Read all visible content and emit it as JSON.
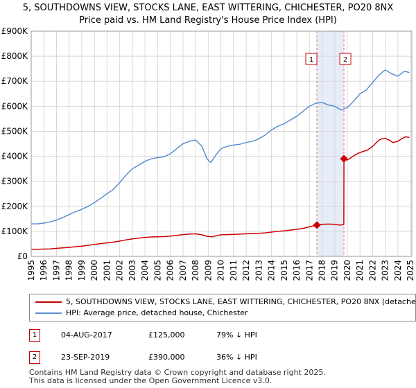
{
  "title_line1": "5, SOUTHDOWNS VIEW, STOCKS LANE, EAST WITTERING, CHICHESTER, PO20 8NX",
  "title_line2": "Price paid vs. HM Land Registry's House Price Index (HPI)",
  "chart_data": {
    "type": "line",
    "title": "5, SOUTHDOWNS VIEW, STOCKS LANE, EAST WITTERING, CHICHESTER, PO20 8NX - Price paid vs. HM Land Registry's House Price Index (HPI)",
    "xlabel": "",
    "ylabel": "",
    "xlim": [
      1995.0,
      2025.1
    ],
    "ylim": [
      0,
      900000
    ],
    "grid": true,
    "y_ticks": [
      0,
      100000,
      200000,
      300000,
      400000,
      500000,
      600000,
      700000,
      800000,
      900000
    ],
    "y_tick_labels": [
      "£0",
      "£100K",
      "£200K",
      "£300K",
      "£400K",
      "£500K",
      "£600K",
      "£700K",
      "£800K",
      "£900K"
    ],
    "x_tick_labels": [
      "1995",
      "1996",
      "1997",
      "1998",
      "1999",
      "2000",
      "2001",
      "2002",
      "2003",
      "2004",
      "2005",
      "2006",
      "2007",
      "2008",
      "2009",
      "2010",
      "2011",
      "2012",
      "2013",
      "2014",
      "2015",
      "2016",
      "2017",
      "2018",
      "2019",
      "2020",
      "2021",
      "2022",
      "2023",
      "2024",
      "2025"
    ],
    "highlight_band": [
      2017.59,
      2019.73
    ],
    "series": [
      {
        "name": "5, SOUTHDOWNS VIEW, STOCKS LANE, EAST WITTERING, CHICHESTER, PO20 8NX (detached house)",
        "color": "#cc0000",
        "x": [
          1995.0,
          1995.5,
          1996.0,
          1996.5,
          1997.0,
          1997.5,
          1998.0,
          1998.5,
          1999.0,
          1999.5,
          2000.0,
          2000.5,
          2001.0,
          2001.5,
          2002.0,
          2002.5,
          2003.0,
          2003.5,
          2004.0,
          2004.5,
          2005.0,
          2005.5,
          2006.0,
          2006.5,
          2007.0,
          2007.5,
          2008.0,
          2008.5,
          2008.9,
          2009.3,
          2009.6,
          2010.0,
          2010.5,
          2011.0,
          2011.5,
          2012.0,
          2012.5,
          2013.0,
          2013.5,
          2014.0,
          2014.5,
          2015.0,
          2015.5,
          2016.0,
          2016.5,
          2017.0,
          2017.59,
          2018.0,
          2018.5,
          2019.0,
          2019.4,
          2019.72,
          2019.73,
          2020.0,
          2020.3,
          2020.6,
          2021.0,
          2021.3,
          2021.6,
          2022.0,
          2022.3,
          2022.6,
          2023.0,
          2023.3,
          2023.6,
          2024.0,
          2024.3,
          2024.6,
          2024.9
        ],
        "y": [
          28500,
          28500,
          29000,
          30000,
          32000,
          34000,
          36000,
          38500,
          41000,
          44000,
          48000,
          51000,
          54000,
          57000,
          61000,
          66000,
          70000,
          73000,
          76000,
          77500,
          78000,
          79000,
          81000,
          84000,
          87000,
          89000,
          90000,
          86000,
          80000,
          78000,
          82000,
          86000,
          87000,
          88000,
          89000,
          90000,
          91000,
          92000,
          94000,
          97000,
          100000,
          102000,
          105000,
          108000,
          112000,
          118000,
          125000,
          128000,
          129000,
          128000,
          125000,
          127000,
          390000,
          385000,
          395000,
          405000,
          415000,
          420000,
          425000,
          440000,
          455000,
          468000,
          472000,
          465000,
          455000,
          460000,
          470000,
          478000,
          475000
        ]
      },
      {
        "name": "HPI: Average price, detached house, Chichester",
        "color": "#5b8fd0",
        "x": [
          1995.0,
          1995.5,
          1996.0,
          1996.5,
          1997.0,
          1997.5,
          1998.0,
          1998.5,
          1999.0,
          1999.5,
          2000.0,
          2000.5,
          2001.0,
          2001.5,
          2002.0,
          2002.5,
          2003.0,
          2003.5,
          2004.0,
          2004.5,
          2005.0,
          2005.5,
          2006.0,
          2006.5,
          2007.0,
          2007.5,
          2008.0,
          2008.5,
          2008.9,
          2009.2,
          2009.6,
          2010.0,
          2010.5,
          2011.0,
          2011.5,
          2012.0,
          2012.5,
          2013.0,
          2013.5,
          2014.0,
          2014.5,
          2015.0,
          2015.5,
          2016.0,
          2016.5,
          2017.0,
          2017.5,
          2018.0,
          2018.5,
          2019.0,
          2019.5,
          2020.0,
          2020.5,
          2021.0,
          2021.5,
          2022.0,
          2022.5,
          2023.0,
          2023.5,
          2024.0,
          2024.5,
          2024.9
        ],
        "y": [
          130000,
          130000,
          133000,
          138000,
          145000,
          155000,
          167000,
          178000,
          188000,
          200000,
          215000,
          232000,
          250000,
          268000,
          295000,
          325000,
          350000,
          365000,
          380000,
          390000,
          395000,
          398000,
          410000,
          430000,
          450000,
          460000,
          465000,
          440000,
          390000,
          375000,
          405000,
          430000,
          440000,
          445000,
          448000,
          455000,
          460000,
          470000,
          485000,
          505000,
          520000,
          530000,
          545000,
          560000,
          580000,
          600000,
          612000,
          615000,
          605000,
          600000,
          585000,
          595000,
          620000,
          650000,
          665000,
          695000,
          725000,
          745000,
          730000,
          720000,
          740000,
          735000
        ]
      }
    ],
    "annotations": [
      {
        "label": "1",
        "x": 2017.59,
        "y": 125000
      },
      {
        "label": "2",
        "x": 2019.73,
        "y": 390000
      }
    ]
  },
  "legend": {
    "entries": [
      {
        "label": "5, SOUTHDOWNS VIEW, STOCKS LANE, EAST WITTERING, CHICHESTER, PO20 8NX (detached house)",
        "color": "#cc0000"
      },
      {
        "label": "HPI: Average price, detached house, Chichester",
        "color": "#5b8fd0"
      }
    ]
  },
  "transactions": [
    {
      "num": "1",
      "date": "04-AUG-2017",
      "price": "£125,000",
      "hpi": "79% ↓ HPI"
    },
    {
      "num": "2",
      "date": "23-SEP-2019",
      "price": "£390,000",
      "hpi": "36% ↓ HPI"
    }
  ],
  "footer": {
    "line1": "Contains HM Land Registry data © Crown copyright and database right 2025.",
    "line2": "This data is licensed under the Open Government Licence v3.0."
  }
}
